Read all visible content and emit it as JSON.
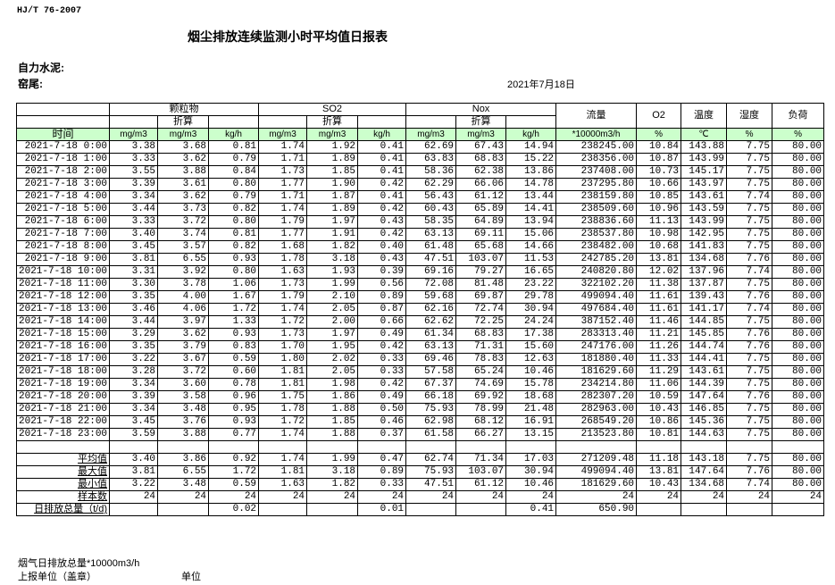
{
  "header": {
    "standard": "HJ/T  76-2007",
    "title": "烟尘排放连续监测小时平均值日报表",
    "company": "自力水泥:",
    "kiln": "窑尾:",
    "date": "2021年7月18日"
  },
  "columns": {
    "groups": [
      "颗粒物",
      "SO2",
      "Nox"
    ],
    "converted": "折算",
    "flow": "流量",
    "o2": "O2",
    "temp": "温度",
    "humidity": "湿度",
    "load": "负荷",
    "time": "时间",
    "units": [
      "mg/m3",
      "mg/m3",
      "kg/h",
      "mg/m3",
      "mg/m3",
      "kg/h",
      "mg/m3",
      "mg/m3",
      "kg/h",
      "*10000m3/h",
      "%",
      "℃",
      "%",
      "%"
    ]
  },
  "rows": [
    [
      "2021-7-18 0:00",
      "3.38",
      "3.68",
      "0.81",
      "1.74",
      "1.92",
      "0.41",
      "62.69",
      "67.43",
      "14.94",
      "238245.00",
      "10.84",
      "143.88",
      "7.75",
      "80.00"
    ],
    [
      "2021-7-18 1:00",
      "3.33",
      "3.62",
      "0.79",
      "1.71",
      "1.89",
      "0.41",
      "63.83",
      "68.83",
      "15.22",
      "238356.00",
      "10.87",
      "143.99",
      "7.75",
      "80.00"
    ],
    [
      "2021-7-18 2:00",
      "3.55",
      "3.88",
      "0.84",
      "1.73",
      "1.85",
      "0.41",
      "58.36",
      "62.38",
      "13.86",
      "237408.00",
      "10.73",
      "145.17",
      "7.75",
      "80.00"
    ],
    [
      "2021-7-18 3:00",
      "3.39",
      "3.61",
      "0.80",
      "1.77",
      "1.90",
      "0.42",
      "62.29",
      "66.06",
      "14.78",
      "237295.80",
      "10.66",
      "143.97",
      "7.75",
      "80.00"
    ],
    [
      "2021-7-18 4:00",
      "3.34",
      "3.62",
      "0.79",
      "1.71",
      "1.87",
      "0.41",
      "56.43",
      "61.12",
      "13.44",
      "238159.80",
      "10.85",
      "143.61",
      "7.74",
      "80.00"
    ],
    [
      "2021-7-18 5:00",
      "3.44",
      "3.73",
      "0.82",
      "1.74",
      "1.89",
      "0.42",
      "60.43",
      "65.89",
      "14.41",
      "238509.60",
      "10.96",
      "143.59",
      "7.75",
      "80.00"
    ],
    [
      "2021-7-18 6:00",
      "3.33",
      "3.72",
      "0.80",
      "1.79",
      "1.97",
      "0.43",
      "58.35",
      "64.89",
      "13.94",
      "238836.60",
      "11.13",
      "143.99",
      "7.75",
      "80.00"
    ],
    [
      "2021-7-18 7:00",
      "3.40",
      "3.74",
      "0.81",
      "1.77",
      "1.91",
      "0.42",
      "63.13",
      "69.11",
      "15.06",
      "238537.80",
      "10.98",
      "142.95",
      "7.75",
      "80.00"
    ],
    [
      "2021-7-18 8:00",
      "3.45",
      "3.57",
      "0.82",
      "1.68",
      "1.82",
      "0.40",
      "61.48",
      "65.68",
      "14.66",
      "238482.00",
      "10.68",
      "141.83",
      "7.75",
      "80.00"
    ],
    [
      "2021-7-18 9:00",
      "3.81",
      "6.55",
      "0.93",
      "1.78",
      "3.18",
      "0.43",
      "47.51",
      "103.07",
      "11.53",
      "242785.20",
      "13.81",
      "134.68",
      "7.76",
      "80.00"
    ],
    [
      "2021-7-18 10:00",
      "3.31",
      "3.92",
      "0.80",
      "1.63",
      "1.93",
      "0.39",
      "69.16",
      "79.27",
      "16.65",
      "240820.80",
      "12.02",
      "137.96",
      "7.74",
      "80.00"
    ],
    [
      "2021-7-18 11:00",
      "3.30",
      "3.78",
      "1.06",
      "1.73",
      "1.99",
      "0.56",
      "72.08",
      "81.48",
      "23.22",
      "322102.20",
      "11.38",
      "137.87",
      "7.75",
      "80.00"
    ],
    [
      "2021-7-18 12:00",
      "3.35",
      "4.00",
      "1.67",
      "1.79",
      "2.10",
      "0.89",
      "59.68",
      "69.87",
      "29.78",
      "499094.40",
      "11.61",
      "139.43",
      "7.76",
      "80.00"
    ],
    [
      "2021-7-18 13:00",
      "3.46",
      "4.06",
      "1.72",
      "1.74",
      "2.05",
      "0.87",
      "62.16",
      "72.74",
      "30.94",
      "497684.40",
      "11.61",
      "141.17",
      "7.74",
      "80.00"
    ],
    [
      "2021-7-18 14:00",
      "3.44",
      "3.97",
      "1.33",
      "1.72",
      "2.00",
      "0.66",
      "62.62",
      "72.25",
      "24.24",
      "387152.40",
      "11.46",
      "144.85",
      "7.75",
      "80.00"
    ],
    [
      "2021-7-18 15:00",
      "3.29",
      "3.62",
      "0.93",
      "1.73",
      "1.97",
      "0.49",
      "61.34",
      "68.83",
      "17.38",
      "283313.40",
      "11.21",
      "145.85",
      "7.76",
      "80.00"
    ],
    [
      "2021-7-18 16:00",
      "3.35",
      "3.79",
      "0.83",
      "1.70",
      "1.95",
      "0.42",
      "63.13",
      "71.31",
      "15.60",
      "247176.00",
      "11.26",
      "144.74",
      "7.76",
      "80.00"
    ],
    [
      "2021-7-18 17:00",
      "3.22",
      "3.67",
      "0.59",
      "1.80",
      "2.02",
      "0.33",
      "69.46",
      "78.83",
      "12.63",
      "181880.40",
      "11.33",
      "144.41",
      "7.75",
      "80.00"
    ],
    [
      "2021-7-18 18:00",
      "3.28",
      "3.72",
      "0.60",
      "1.81",
      "2.05",
      "0.33",
      "57.58",
      "65.24",
      "10.46",
      "181629.60",
      "11.29",
      "143.61",
      "7.75",
      "80.00"
    ],
    [
      "2021-7-18 19:00",
      "3.34",
      "3.60",
      "0.78",
      "1.81",
      "1.98",
      "0.42",
      "67.37",
      "74.69",
      "15.78",
      "234214.80",
      "11.06",
      "144.39",
      "7.75",
      "80.00"
    ],
    [
      "2021-7-18 20:00",
      "3.39",
      "3.58",
      "0.96",
      "1.75",
      "1.86",
      "0.49",
      "66.18",
      "69.92",
      "18.68",
      "282307.20",
      "10.59",
      "147.64",
      "7.76",
      "80.00"
    ],
    [
      "2021-7-18 21:00",
      "3.34",
      "3.48",
      "0.95",
      "1.78",
      "1.88",
      "0.50",
      "75.93",
      "78.99",
      "21.48",
      "282963.00",
      "10.43",
      "146.85",
      "7.75",
      "80.00"
    ],
    [
      "2021-7-18 22:00",
      "3.45",
      "3.76",
      "0.93",
      "1.72",
      "1.85",
      "0.46",
      "62.98",
      "68.12",
      "16.91",
      "268549.20",
      "10.86",
      "145.36",
      "7.75",
      "80.00"
    ],
    [
      "2021-7-18 23:00",
      "3.59",
      "3.88",
      "0.77",
      "1.74",
      "1.88",
      "0.37",
      "61.58",
      "66.27",
      "13.15",
      "213523.80",
      "10.81",
      "144.63",
      "7.75",
      "80.00"
    ]
  ],
  "summary": [
    [
      "平均值",
      "3.40",
      "3.86",
      "0.92",
      "1.74",
      "1.99",
      "0.47",
      "62.74",
      "71.34",
      "17.03",
      "271209.48",
      "11.18",
      "143.18",
      "7.75",
      "80.00"
    ],
    [
      "最大值",
      "3.81",
      "6.55",
      "1.72",
      "1.81",
      "3.18",
      "0.89",
      "75.93",
      "103.07",
      "30.94",
      "499094.40",
      "13.81",
      "147.64",
      "7.76",
      "80.00"
    ],
    [
      "最小值",
      "3.22",
      "3.48",
      "0.59",
      "1.63",
      "1.82",
      "0.33",
      "47.51",
      "61.12",
      "10.46",
      "181629.60",
      "10.43",
      "134.68",
      "7.74",
      "80.00"
    ],
    [
      "样本数",
      "24",
      "24",
      "24",
      "24",
      "24",
      "24",
      "24",
      "24",
      "24",
      "24",
      "24",
      "24",
      "24",
      "24"
    ],
    [
      "日排放总量（t/d)",
      "",
      "",
      "0.02",
      "",
      "",
      "0.01",
      "",
      "",
      "0.41",
      "650.90",
      "",
      "",
      "",
      ""
    ]
  ],
  "footer": {
    "flue_total": "烟气日排放总量*10000m3/h",
    "reporter": "上报单位（盖章）",
    "unit": "单位"
  },
  "colors": {
    "header_green": "#ccffcc"
  }
}
